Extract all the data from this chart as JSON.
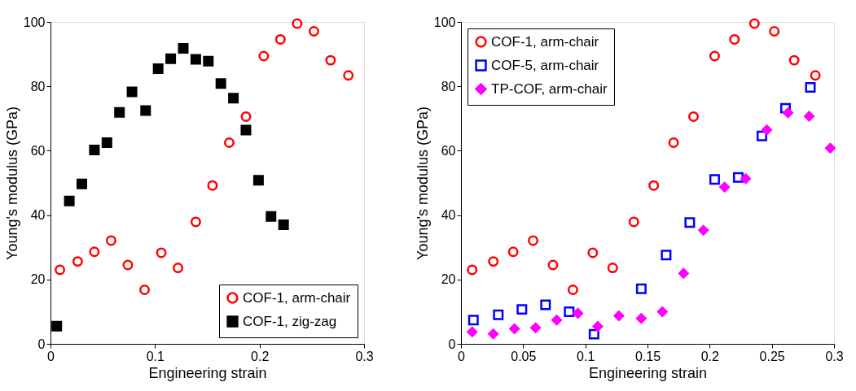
{
  "chart_data": [
    {
      "type": "scatter",
      "xlabel": "Engineering strain",
      "ylabel": "Young's modulus (GPa)",
      "xlim": [
        0,
        0.3
      ],
      "ylim": [
        0,
        100
      ],
      "xticks": [
        0,
        0.1,
        0.2,
        0.3
      ],
      "yticks": [
        0,
        20,
        40,
        60,
        80,
        100
      ],
      "grid": false,
      "legend": "bottom right",
      "series": [
        {
          "name": "COF-1, arm-chair",
          "color": "#ff0000",
          "marker": "circle",
          "x": [
            0.009,
            0.026,
            0.042,
            0.058,
            0.074,
            0.09,
            0.106,
            0.122,
            0.139,
            0.155,
            0.171,
            0.187,
            0.204,
            0.22,
            0.236,
            0.252,
            0.268,
            0.285
          ],
          "values": [
            23.0,
            25.6,
            28.6,
            32.1,
            24.5,
            16.8,
            28.3,
            23.6,
            37.9,
            49.2,
            62.5,
            70.6,
            89.4,
            94.6,
            99.5,
            97.1,
            88.1,
            83.4
          ]
        },
        {
          "name": "COF-1, zig-zag",
          "color": "#000000",
          "marker": "square",
          "x": [
            0.006,
            0.018,
            0.03,
            0.042,
            0.054,
            0.066,
            0.078,
            0.091,
            0.103,
            0.115,
            0.127,
            0.139,
            0.151,
            0.163,
            0.175,
            0.187,
            0.199,
            0.211,
            0.223
          ],
          "values": [
            5.5,
            44.4,
            49.7,
            60.2,
            62.5,
            71.9,
            78.3,
            72.5,
            85.5,
            88.6,
            91.8,
            88.4,
            87.8,
            80.9,
            76.3,
            66.4,
            50.8,
            39.6,
            37.0
          ]
        }
      ]
    },
    {
      "type": "scatter",
      "xlabel": "Engineering strain",
      "ylabel": "Young's modulus (GPa)",
      "xlim": [
        0,
        0.3
      ],
      "ylim": [
        0,
        100
      ],
      "xticks": [
        0,
        0.05,
        0.1,
        0.15,
        0.2,
        0.25,
        0.3
      ],
      "yticks": [
        0,
        20,
        40,
        60,
        80,
        100
      ],
      "grid": false,
      "legend": "top left",
      "series": [
        {
          "name": "COF-1, arm-chair",
          "color": "#ff0000",
          "marker": "circle",
          "x": [
            0.009,
            0.026,
            0.042,
            0.058,
            0.074,
            0.09,
            0.106,
            0.122,
            0.139,
            0.155,
            0.171,
            0.187,
            0.204,
            0.22,
            0.236,
            0.252,
            0.268,
            0.285
          ],
          "values": [
            23.0,
            25.6,
            28.6,
            32.1,
            24.5,
            16.8,
            28.3,
            23.6,
            37.9,
            49.2,
            62.5,
            70.6,
            89.4,
            94.6,
            99.5,
            97.1,
            88.1,
            83.4
          ]
        },
        {
          "name": "COF-5, arm-chair",
          "color": "#0000ff",
          "marker": "square",
          "x": [
            0.01,
            0.03,
            0.049,
            0.068,
            0.087,
            0.107,
            0.145,
            0.165,
            0.184,
            0.204,
            0.223,
            0.242,
            0.261,
            0.281
          ],
          "values": [
            7.4,
            9.0,
            10.7,
            12.1,
            10.0,
            3.0,
            17.1,
            27.6,
            37.7,
            51.1,
            51.7,
            64.6,
            73.2,
            79.7
          ]
        },
        {
          "name": "TP-COF, arm-chair",
          "color": "#ff00ff",
          "marker": "diamond",
          "x": [
            0.009,
            0.026,
            0.043,
            0.06,
            0.077,
            0.094,
            0.11,
            0.127,
            0.145,
            0.162,
            0.179,
            0.195,
            0.212,
            0.229,
            0.246,
            0.263,
            0.28,
            0.297
          ],
          "values": [
            3.7,
            3.1,
            4.7,
            5.0,
            7.4,
            9.5,
            5.4,
            8.7,
            7.9,
            10.0,
            21.9,
            35.3,
            48.7,
            51.3,
            66.5,
            71.8,
            70.7,
            60.8
          ]
        }
      ]
    }
  ]
}
